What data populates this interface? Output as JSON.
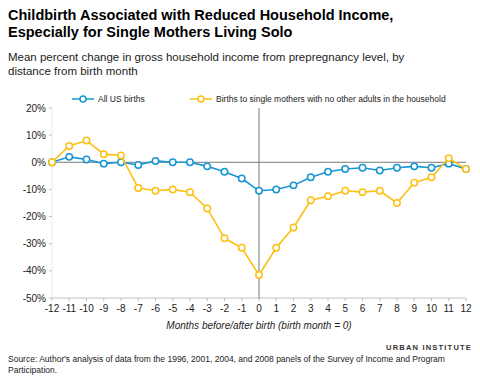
{
  "chart_data": {
    "type": "line",
    "title": "Childbirth Associated with Reduced Household Income, Especially for Single Mothers Living Solo",
    "subtitle": "Mean percent change in gross household income from prepregnancy level, by distance from birth month",
    "x_label": "Months before/after birth (birth month = 0)",
    "source": "Source: Author's analysis of data from the 1996, 2001, 2004, and 2008 panels of the Survey of Income and Program Participation.",
    "brand": "URBAN INSTITUTE",
    "x": [
      -12,
      -11,
      -10,
      -9,
      -8,
      -7,
      -6,
      -5,
      -4,
      -3,
      -2,
      -1,
      0,
      1,
      2,
      3,
      4,
      5,
      6,
      7,
      8,
      9,
      10,
      11,
      12
    ],
    "xlim": [
      -12,
      12
    ],
    "xticks": [
      -12,
      -11,
      -10,
      -9,
      -8,
      -7,
      -6,
      -5,
      -4,
      -3,
      -2,
      -1,
      0,
      1,
      2,
      3,
      4,
      5,
      6,
      7,
      8,
      9,
      10,
      11,
      12
    ],
    "ylim": [
      -50,
      20
    ],
    "yticks": [
      {
        "value": -50,
        "label": "-50%"
      },
      {
        "value": -40,
        "label": "-40%"
      },
      {
        "value": -30,
        "label": "-30%"
      },
      {
        "value": -20,
        "label": "-20%"
      },
      {
        "value": -10,
        "label": "-10%"
      },
      {
        "value": 0,
        "label": "0%"
      },
      {
        "value": 10,
        "label": "10%"
      },
      {
        "value": 20,
        "label": "20%"
      }
    ],
    "grid": false,
    "legend": "top",
    "marker": "circle",
    "series": [
      {
        "name": "All US births",
        "color": "#1696d2",
        "values": [
          0,
          2,
          1,
          -0.5,
          0,
          -1,
          0.5,
          0,
          0,
          -1.5,
          -3.5,
          -6,
          -10.5,
          -10,
          -8.5,
          -5.5,
          -3.5,
          -2.5,
          -2,
          -3,
          -2,
          -1.5,
          -2,
          -0.5,
          -2.5
        ]
      },
      {
        "name": "Births to single mothers with no other adults in the household",
        "color": "#fdbf11",
        "values": [
          0,
          6,
          8,
          3,
          2.5,
          -9.5,
          -10.5,
          -10,
          -11,
          -17,
          -28,
          -31.5,
          -41.5,
          -31.5,
          -24,
          -14,
          -12.5,
          -10.5,
          -11,
          -10.5,
          -15,
          -7.5,
          -5.5,
          1.5,
          -2.5
        ]
      }
    ]
  }
}
